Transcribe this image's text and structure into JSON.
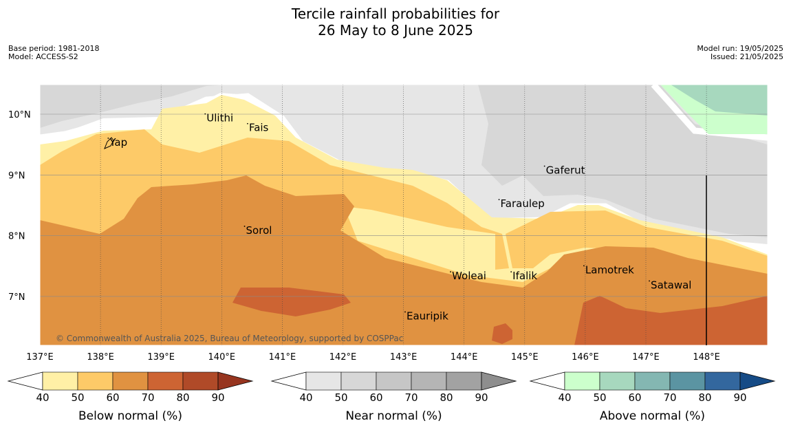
{
  "header": {
    "title_line1": "Tercile rainfall probabilities for",
    "title_line2": "26 May to 8 June 2025",
    "base_period": "Base period: 1981-2018",
    "model": "Model: ACCESS-S2",
    "model_run": "Model run: 19/05/2025",
    "issued": "Issued: 21/05/2025"
  },
  "map": {
    "lat_labels": [
      "10°N",
      "9°N",
      "8°N",
      "7°N"
    ],
    "lon_labels": [
      "137°E",
      "138°E",
      "139°E",
      "140°E",
      "141°E",
      "142°E",
      "143°E",
      "144°E",
      "145°E",
      "146°E",
      "147°E",
      "148°E"
    ],
    "places": [
      {
        "name": "Ulithi",
        "lon": 139.75,
        "lat": 9.88
      },
      {
        "name": "Fais",
        "lon": 140.45,
        "lat": 9.72
      },
      {
        "name": "Yap",
        "lon": 138.15,
        "lat": 9.48
      },
      {
        "name": "Gaferut",
        "lon": 145.35,
        "lat": 9.02
      },
      {
        "name": "Faraulep",
        "lon": 144.6,
        "lat": 8.47
      },
      {
        "name": "Sorol",
        "lon": 140.4,
        "lat": 8.03
      },
      {
        "name": "Lamotrek",
        "lon": 146.0,
        "lat": 7.38
      },
      {
        "name": "Woleai",
        "lon": 143.8,
        "lat": 7.28
      },
      {
        "name": "Ifalik",
        "lon": 144.8,
        "lat": 7.28
      },
      {
        "name": "Satawal",
        "lon": 147.08,
        "lat": 7.13
      },
      {
        "name": "Eauripik",
        "lon": 143.05,
        "lat": 6.62
      }
    ],
    "credit": "© Commonwealth of Australia 2025, Bureau of Meteorology, supported by COSPPac"
  },
  "legends": [
    {
      "title": "Below normal (%)",
      "ticks": [
        "40",
        "50",
        "60",
        "70",
        "80",
        "90"
      ],
      "colors": [
        "#fff0a6",
        "#fdca68",
        "#e09241",
        "#cd6433",
        "#b04a28",
        "#97351f"
      ]
    },
    {
      "title": "Near normal (%)",
      "ticks": [
        "40",
        "50",
        "60",
        "70",
        "80",
        "90"
      ],
      "colors": [
        "#e6e6e6",
        "#d7d7d7",
        "#c6c6c6",
        "#b5b5b5",
        "#a2a2a2",
        "#8e8e8e"
      ]
    },
    {
      "title": "Above normal (%)",
      "ticks": [
        "40",
        "50",
        "60",
        "70",
        "80",
        "90"
      ],
      "colors": [
        "#ccffcc",
        "#a7d8be",
        "#84b7b2",
        "#5b94a2",
        "#33679e",
        "#164b86"
      ]
    }
  ]
}
